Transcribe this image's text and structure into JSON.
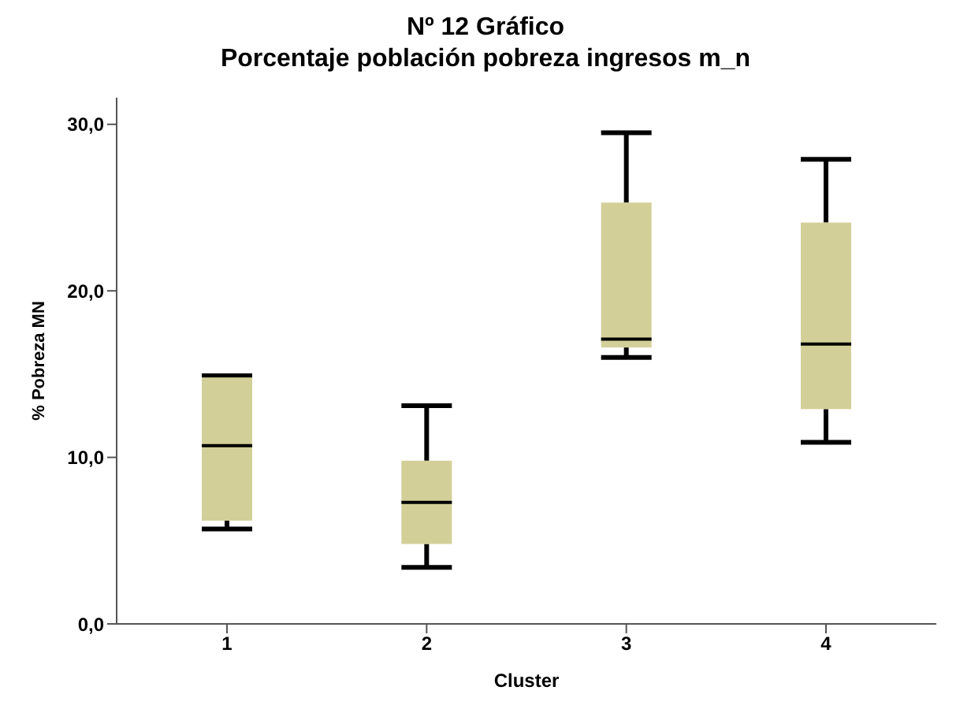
{
  "chart_data": {
    "type": "box",
    "title": "Nº 12 Gráfico\nPorcentaje población pobreza ingresos m_n",
    "xlabel": "Cluster",
    "ylabel": "% Pobreza MN",
    "categories": [
      "1",
      "2",
      "3",
      "4"
    ],
    "color": "#d3cf98",
    "boxes": [
      {
        "low": 5.7,
        "q1": 6.2,
        "median": 10.7,
        "q3": 14.8,
        "high": 14.9
      },
      {
        "low": 3.4,
        "q1": 4.8,
        "median": 7.3,
        "q3": 9.8,
        "high": 13.1
      },
      {
        "low": 16.0,
        "q1": 16.6,
        "median": 17.1,
        "q3": 25.3,
        "high": 29.5
      },
      {
        "low": 10.9,
        "q1": 12.9,
        "median": 16.8,
        "q3": 24.1,
        "high": 27.9
      }
    ],
    "ylim": [
      0,
      31.6
    ],
    "yticks": [
      {
        "value": 0,
        "label": "0,0"
      },
      {
        "value": 10,
        "label": "10,0"
      },
      {
        "value": 20,
        "label": "20,0"
      },
      {
        "value": 30,
        "label": "30,0"
      }
    ],
    "grid": false,
    "legend": false
  }
}
